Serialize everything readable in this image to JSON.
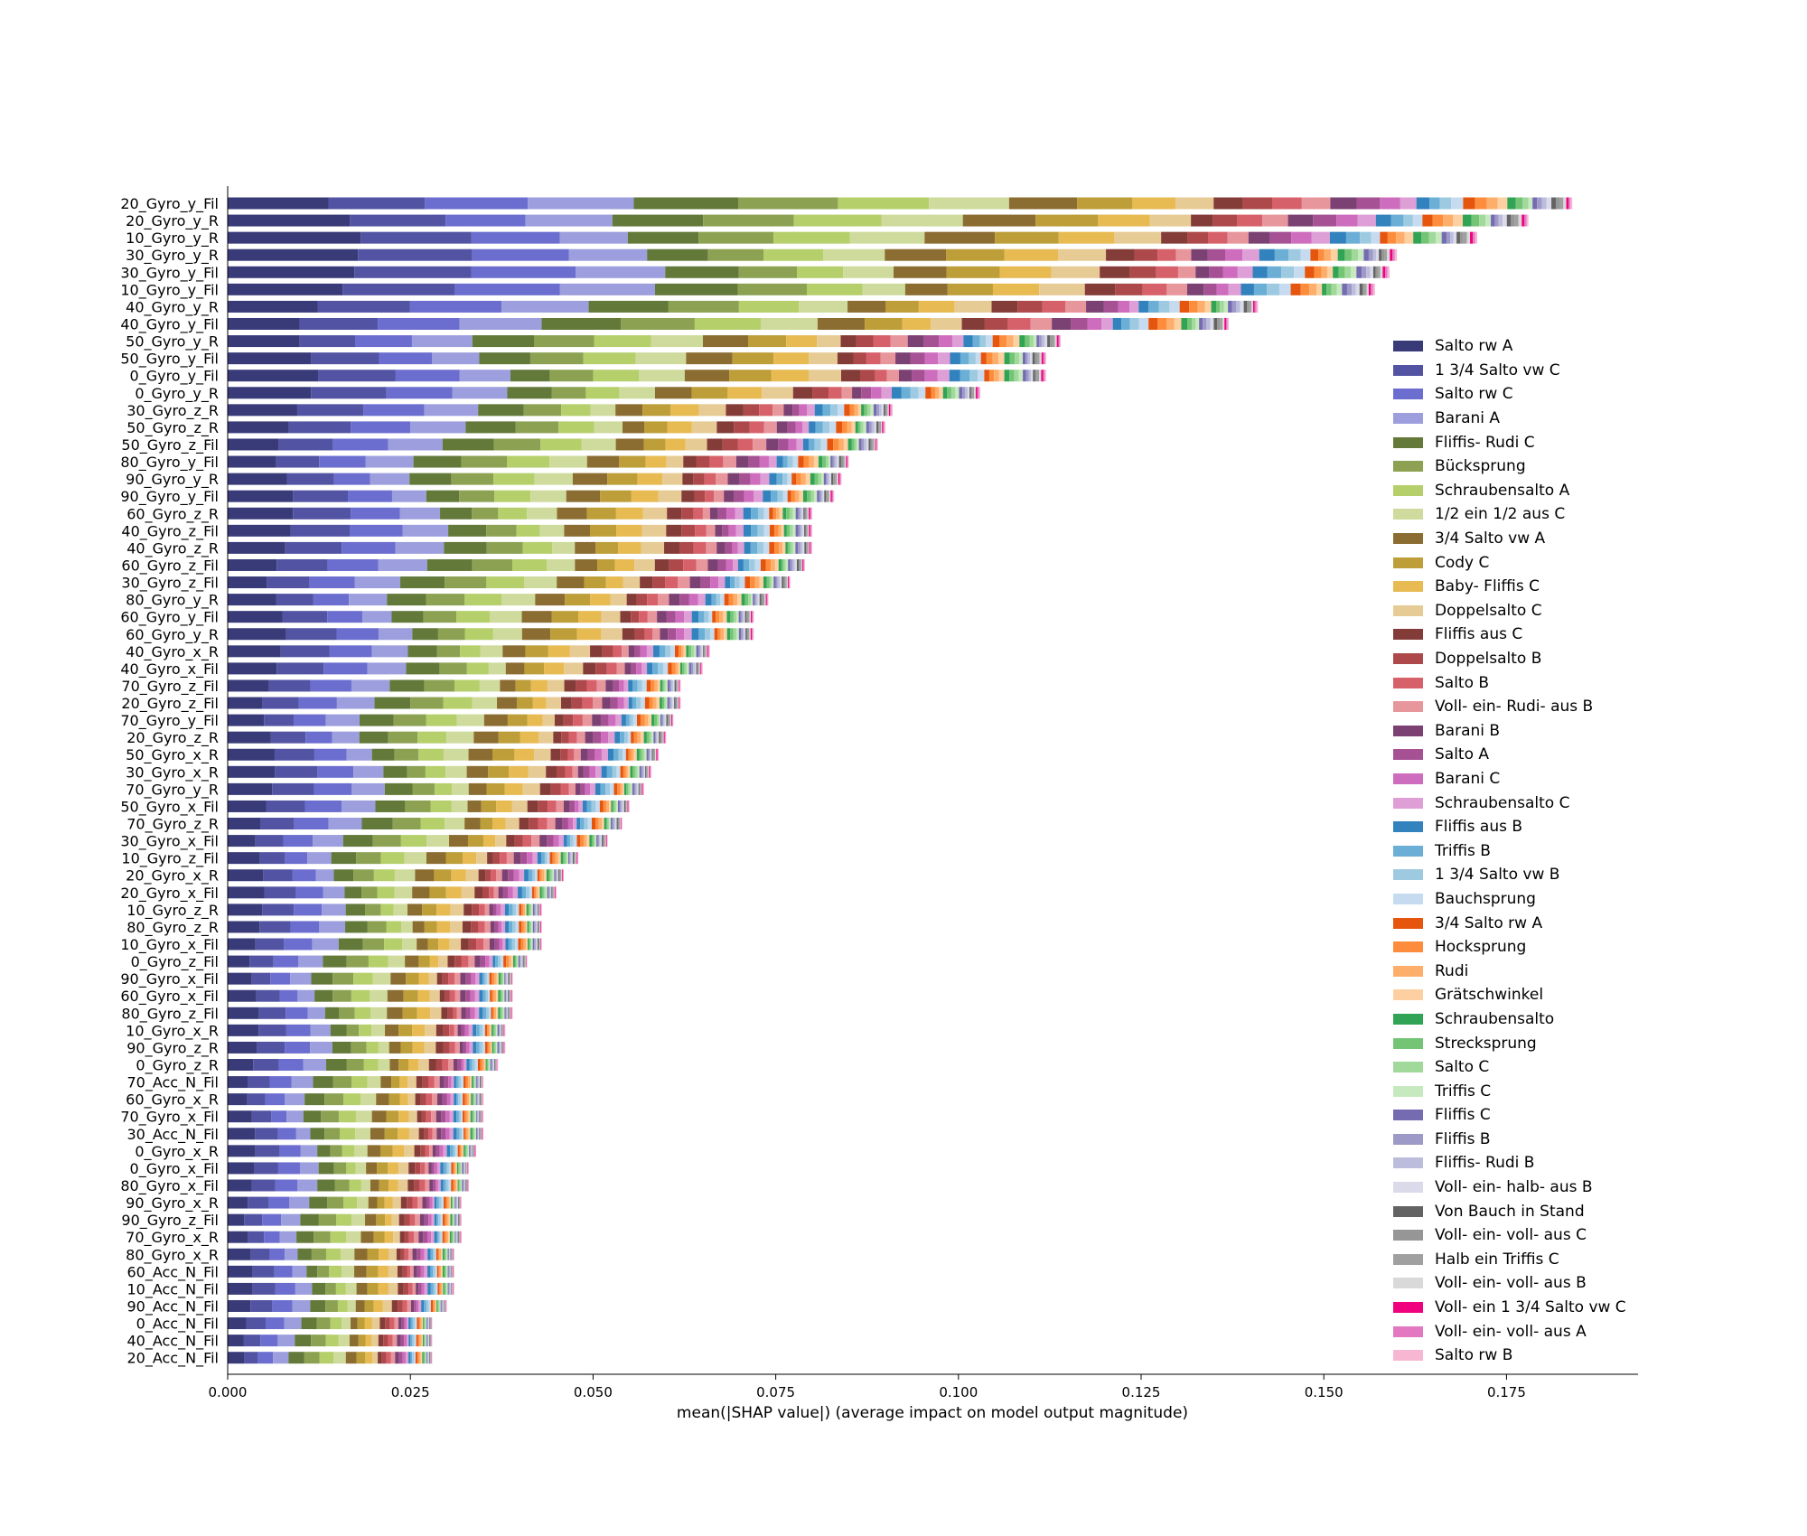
{
  "chart_data": {
    "type": "bar",
    "orientation": "horizontal",
    "stacked": true,
    "xlabel": "mean(|SHAP value|) (average impact on model output magnitude)",
    "xlim": [
      0,
      0.193
    ],
    "xticks": [
      "0.000",
      "0.025",
      "0.050",
      "0.075",
      "0.100",
      "0.125",
      "0.150",
      "0.175"
    ],
    "legend_position": "right",
    "categories": [
      "20_Gyro_y_Fil",
      "20_Gyro_y_R",
      "10_Gyro_y_R",
      "30_Gyro_y_R",
      "30_Gyro_y_Fil",
      "10_Gyro_y_Fil",
      "40_Gyro_y_R",
      "40_Gyro_y_Fil",
      "50_Gyro_y_R",
      "50_Gyro_y_Fil",
      "0_Gyro_y_Fil",
      "0_Gyro_y_R",
      "30_Gyro_z_R",
      "50_Gyro_z_R",
      "50_Gyro_z_Fil",
      "80_Gyro_y_Fil",
      "90_Gyro_y_R",
      "90_Gyro_y_Fil",
      "60_Gyro_z_R",
      "40_Gyro_z_Fil",
      "40_Gyro_z_R",
      "60_Gyro_z_Fil",
      "30_Gyro_z_Fil",
      "80_Gyro_y_R",
      "60_Gyro_y_Fil",
      "60_Gyro_y_R",
      "40_Gyro_x_R",
      "40_Gyro_x_Fil",
      "70_Gyro_z_Fil",
      "20_Gyro_z_Fil",
      "70_Gyro_y_Fil",
      "20_Gyro_z_R",
      "50_Gyro_x_R",
      "30_Gyro_x_R",
      "70_Gyro_y_R",
      "50_Gyro_x_Fil",
      "70_Gyro_z_R",
      "30_Gyro_x_Fil",
      "10_Gyro_z_Fil",
      "20_Gyro_x_R",
      "20_Gyro_x_Fil",
      "10_Gyro_z_R",
      "80_Gyro_z_R",
      "10_Gyro_x_Fil",
      "0_Gyro_z_Fil",
      "90_Gyro_x_Fil",
      "60_Gyro_x_Fil",
      "80_Gyro_z_Fil",
      "10_Gyro_x_R",
      "90_Gyro_z_R",
      "0_Gyro_z_R",
      "70_Acc_N_Fil",
      "60_Gyro_x_R",
      "70_Gyro_x_Fil",
      "30_Acc_N_Fil",
      "0_Gyro_x_R",
      "0_Gyro_x_Fil",
      "80_Gyro_x_Fil",
      "90_Gyro_x_R",
      "90_Gyro_z_Fil",
      "70_Gyro_x_R",
      "80_Gyro_x_R",
      "60_Acc_N_Fil",
      "10_Acc_N_Fil",
      "90_Acc_N_Fil",
      "0_Acc_N_Fil",
      "40_Acc_N_Fil",
      "20_Acc_N_Fil"
    ],
    "totals": [
      0.184,
      0.178,
      0.171,
      0.16,
      0.159,
      0.157,
      0.141,
      0.137,
      0.114,
      0.112,
      0.112,
      0.103,
      0.091,
      0.09,
      0.089,
      0.085,
      0.084,
      0.083,
      0.08,
      0.08,
      0.08,
      0.079,
      0.077,
      0.074,
      0.072,
      0.072,
      0.066,
      0.065,
      0.062,
      0.062,
      0.061,
      0.06,
      0.059,
      0.058,
      0.057,
      0.055,
      0.054,
      0.052,
      0.048,
      0.046,
      0.045,
      0.043,
      0.043,
      0.043,
      0.041,
      0.039,
      0.039,
      0.039,
      0.038,
      0.038,
      0.037,
      0.035,
      0.035,
      0.035,
      0.035,
      0.034,
      0.033,
      0.033,
      0.032,
      0.032,
      0.032,
      0.031,
      0.031,
      0.031,
      0.03,
      0.028,
      0.028,
      0.028
    ],
    "series": [
      {
        "name": "Salto rw A",
        "color": "#393b79"
      },
      {
        "name": "1 3/4 Salto vw C",
        "color": "#5254a3"
      },
      {
        "name": "Salto rw C",
        "color": "#6b6ecf"
      },
      {
        "name": "Barani A",
        "color": "#9c9ede"
      },
      {
        "name": "Fliffis- Rudi C",
        "color": "#637939"
      },
      {
        "name": "Bücksprung",
        "color": "#8ca252"
      },
      {
        "name": "Schraubensalto A",
        "color": "#b5cf6b"
      },
      {
        "name": "1/2 ein 1/2 aus C",
        "color": "#cedb9c"
      },
      {
        "name": "3/4 Salto vw A",
        "color": "#8c6d31"
      },
      {
        "name": "Cody C",
        "color": "#bd9e39"
      },
      {
        "name": "Baby- Fliffis C",
        "color": "#e7ba52"
      },
      {
        "name": "Doppelsalto C",
        "color": "#e7cb94"
      },
      {
        "name": "Fliffis aus C",
        "color": "#843c39"
      },
      {
        "name": "Doppelsalto B",
        "color": "#ad494a"
      },
      {
        "name": "Salto B",
        "color": "#d6616b"
      },
      {
        "name": "Voll- ein- Rudi- aus B",
        "color": "#e7969c"
      },
      {
        "name": "Barani B",
        "color": "#7b4173"
      },
      {
        "name": "Salto A",
        "color": "#a55194"
      },
      {
        "name": "Barani C",
        "color": "#ce6dbd"
      },
      {
        "name": "Schraubensalto C",
        "color": "#de9ed6"
      },
      {
        "name": "Fliffis aus B",
        "color": "#3182bd"
      },
      {
        "name": "Triffis B",
        "color": "#6baed6"
      },
      {
        "name": "1 3/4 Salto vw B",
        "color": "#9ecae1"
      },
      {
        "name": "Bauchsprung",
        "color": "#c6dbef"
      },
      {
        "name": "3/4 Salto rw A",
        "color": "#e6550d"
      },
      {
        "name": "Hocksprung",
        "color": "#fd8d3c"
      },
      {
        "name": "Rudi",
        "color": "#fdae6b"
      },
      {
        "name": "Grätschwinkel",
        "color": "#fdd0a2"
      },
      {
        "name": "Schraubensalto",
        "color": "#31a354"
      },
      {
        "name": "Strecksprung",
        "color": "#74c476"
      },
      {
        "name": "Salto C",
        "color": "#a1d99b"
      },
      {
        "name": "Triffis C",
        "color": "#c7e9c0"
      },
      {
        "name": "Fliffis C",
        "color": "#756bb1"
      },
      {
        "name": "Fliffis B",
        "color": "#9e9ac8"
      },
      {
        "name": "Fliffis- Rudi B",
        "color": "#bcbddc"
      },
      {
        "name": "Voll- ein- halb- aus B",
        "color": "#dadaeb"
      },
      {
        "name": "Von Bauch in Stand",
        "color": "#636363"
      },
      {
        "name": "Voll- ein- voll- aus C",
        "color": "#969696"
      },
      {
        "name": "Halb ein Triffis C",
        "color": "#a0a0a0"
      },
      {
        "name": "Voll- ein- voll- aus B",
        "color": "#d9d9d9"
      },
      {
        "name": "Voll- ein 1 3/4 Salto vw C",
        "color": "#f0027f"
      },
      {
        "name": "Voll- ein- voll- aus A",
        "color": "#e377c2"
      },
      {
        "name": "Salto rw B",
        "color": "#f7b6d2"
      }
    ]
  }
}
